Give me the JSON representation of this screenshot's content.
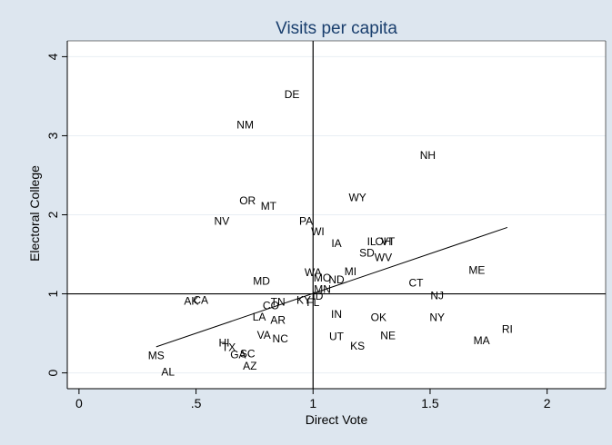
{
  "chart_data": {
    "type": "scatter",
    "title": "Visits per capita",
    "xlabel": "Direct Vote",
    "ylabel": "Electoral College",
    "xlim": [
      -0.05,
      2.25
    ],
    "ylim": [
      -0.2,
      4.2
    ],
    "xticks": [
      {
        "v": 0,
        "label": "0"
      },
      {
        "v": 0.5,
        "label": ".5"
      },
      {
        "v": 1,
        "label": "1"
      },
      {
        "v": 1.5,
        "label": "1.5"
      },
      {
        "v": 2,
        "label": "2"
      }
    ],
    "yticks": [
      {
        "v": 0,
        "label": "0"
      },
      {
        "v": 1,
        "label": "1"
      },
      {
        "v": 2,
        "label": "2"
      },
      {
        "v": 3,
        "label": "3"
      },
      {
        "v": 4,
        "label": "4"
      }
    ],
    "grid": true,
    "reference_lines": {
      "x": 1,
      "y": 1
    },
    "points": [
      {
        "label": "DE",
        "x": 0.91,
        "y": 3.52
      },
      {
        "label": "NM",
        "x": 0.71,
        "y": 3.14
      },
      {
        "label": "NH",
        "x": 1.49,
        "y": 2.75
      },
      {
        "label": "WY",
        "x": 1.19,
        "y": 2.22
      },
      {
        "label": "OR",
        "x": 0.72,
        "y": 2.18
      },
      {
        "label": "MT",
        "x": 0.81,
        "y": 2.11
      },
      {
        "label": "NV",
        "x": 0.61,
        "y": 1.92
      },
      {
        "label": "PA",
        "x": 0.97,
        "y": 1.92
      },
      {
        "label": "WI",
        "x": 1.02,
        "y": 1.79
      },
      {
        "label": "IA",
        "x": 1.1,
        "y": 1.64
      },
      {
        "label": "IL",
        "x": 1.25,
        "y": 1.66
      },
      {
        "label": "OH",
        "x": 1.3,
        "y": 1.66
      },
      {
        "label": "VT",
        "x": 1.32,
        "y": 1.66
      },
      {
        "label": "SD",
        "x": 1.23,
        "y": 1.52
      },
      {
        "label": "WV",
        "x": 1.3,
        "y": 1.46
      },
      {
        "label": "ME",
        "x": 1.7,
        "y": 1.3
      },
      {
        "label": "WA",
        "x": 1.0,
        "y": 1.27
      },
      {
        "label": "MI",
        "x": 1.16,
        "y": 1.28
      },
      {
        "label": "MO",
        "x": 1.04,
        "y": 1.2
      },
      {
        "label": "ND",
        "x": 1.1,
        "y": 1.18
      },
      {
        "label": "MD",
        "x": 0.78,
        "y": 1.16
      },
      {
        "label": "CT",
        "x": 1.44,
        "y": 1.14
      },
      {
        "label": "MN",
        "x": 1.04,
        "y": 1.06
      },
      {
        "label": "NJ",
        "x": 1.53,
        "y": 0.98
      },
      {
        "label": "ID",
        "x": 1.02,
        "y": 0.97
      },
      {
        "label": "AK",
        "x": 0.48,
        "y": 0.91
      },
      {
        "label": "CA",
        "x": 0.52,
        "y": 0.92
      },
      {
        "label": "KY",
        "x": 0.96,
        "y": 0.92
      },
      {
        "label": "FL",
        "x": 1.0,
        "y": 0.89
      },
      {
        "label": "TN",
        "x": 0.85,
        "y": 0.9
      },
      {
        "label": "CO",
        "x": 0.82,
        "y": 0.85
      },
      {
        "label": "IN",
        "x": 1.1,
        "y": 0.74
      },
      {
        "label": "OK",
        "x": 1.28,
        "y": 0.7
      },
      {
        "label": "NY",
        "x": 1.53,
        "y": 0.7
      },
      {
        "label": "LA",
        "x": 0.77,
        "y": 0.71
      },
      {
        "label": "AR",
        "x": 0.85,
        "y": 0.67
      },
      {
        "label": "RI",
        "x": 1.83,
        "y": 0.55
      },
      {
        "label": "VA",
        "x": 0.79,
        "y": 0.48
      },
      {
        "label": "NC",
        "x": 0.86,
        "y": 0.43
      },
      {
        "label": "UT",
        "x": 1.1,
        "y": 0.46
      },
      {
        "label": "NE",
        "x": 1.32,
        "y": 0.47
      },
      {
        "label": "MA",
        "x": 1.72,
        "y": 0.41
      },
      {
        "label": "KS",
        "x": 1.19,
        "y": 0.34
      },
      {
        "label": "HI",
        "x": 0.62,
        "y": 0.38
      },
      {
        "label": "TX",
        "x": 0.64,
        "y": 0.32
      },
      {
        "label": "GA",
        "x": 0.68,
        "y": 0.23
      },
      {
        "label": "SC",
        "x": 0.72,
        "y": 0.24
      },
      {
        "label": "MS",
        "x": 0.33,
        "y": 0.22
      },
      {
        "label": "AZ",
        "x": 0.73,
        "y": 0.09
      },
      {
        "label": "AL",
        "x": 0.38,
        "y": 0.01
      }
    ],
    "fit_line": {
      "x": [
        0.33,
        1.83
      ],
      "y": [
        0.33,
        1.84
      ]
    },
    "colors": {
      "background": "#dde6ef",
      "plot_area": "#ffffff",
      "grid": "#e8eef3",
      "title": "#1a3f6e",
      "ink": "#000000"
    }
  }
}
